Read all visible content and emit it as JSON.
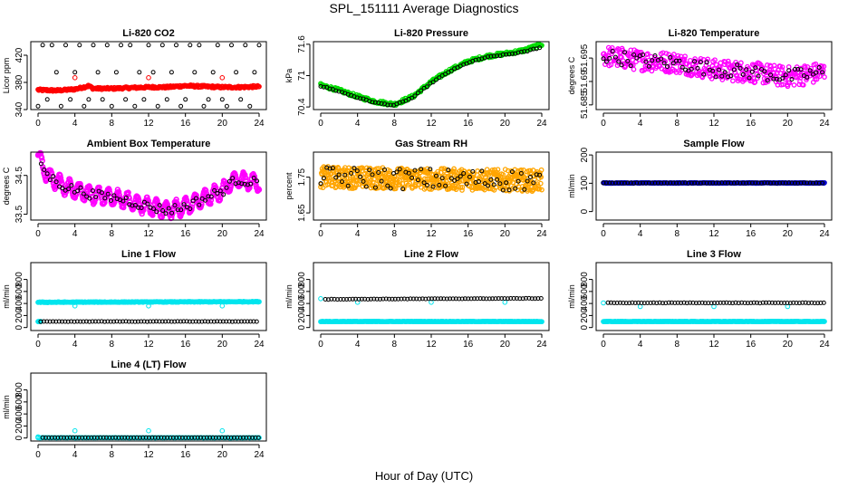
{
  "figure": {
    "title": "SPL_151111  Average Diagnostics",
    "xlabel": "Hour of Day (UTC)",
    "colors": {
      "black": "#000000",
      "red": "#ff0000",
      "green": "#00dd00",
      "magenta": "#ff00ff",
      "orange": "#ffa500",
      "blue": "#0000cc",
      "cyan": "#00e5ee"
    }
  },
  "chart_data": [
    {
      "type": "scatter",
      "title": "Li-820 CO2",
      "ylabel": "Licor ppm",
      "xlim": [
        0,
        24
      ],
      "ylim": [
        340,
        440
      ],
      "xticks": [
        0,
        4,
        8,
        12,
        16,
        20,
        24
      ],
      "yticks": [
        340,
        380,
        420
      ],
      "series": [
        {
          "color": "#000000",
          "kind": "discrete",
          "x_start": 0,
          "x_step": 0.5,
          "levels": [
            345,
            355,
            395,
            435
          ],
          "pattern": [
            0,
            3,
            1,
            3,
            2,
            0,
            3,
            1,
            2,
            3,
            0,
            1,
            3,
            2,
            1,
            3,
            0,
            2,
            3,
            1,
            3,
            0,
            2,
            1,
            3,
            2,
            0,
            3,
            1,
            2,
            3,
            0,
            1,
            3,
            2,
            3,
            0,
            1,
            2,
            3,
            1,
            0,
            3,
            2,
            1,
            3,
            0,
            2,
            3
          ]
        },
        {
          "color": "#ff0000",
          "kind": "dense",
          "x": [
            0,
            2,
            3,
            4,
            5,
            5.5,
            6,
            8,
            10,
            12,
            14,
            16,
            18,
            20,
            22,
            24
          ],
          "y": [
            369,
            368,
            369,
            370,
            373,
            375,
            371,
            371,
            372,
            373,
            373,
            375,
            374,
            373,
            373,
            374
          ],
          "jitter": 1.5,
          "n": 300
        },
        {
          "color": "#ff0000",
          "kind": "points",
          "x": [
            4,
            12,
            20
          ],
          "y": [
            387,
            387,
            387
          ]
        }
      ]
    },
    {
      "type": "scatter",
      "title": "Li-820 Pressure",
      "ylabel": "kPa",
      "xlim": [
        0,
        24
      ],
      "ylim": [
        70.35,
        71.65
      ],
      "xticks": [
        0,
        4,
        8,
        12,
        16,
        20,
        24
      ],
      "yticks": [
        70.4,
        71.0,
        71.6
      ],
      "series": [
        {
          "color": "#00dd00",
          "kind": "dense",
          "x": [
            0,
            2,
            4,
            6,
            8,
            10,
            12,
            14,
            16,
            18,
            20,
            22,
            24
          ],
          "y": [
            70.82,
            70.72,
            70.6,
            70.5,
            70.45,
            70.6,
            70.88,
            71.1,
            71.27,
            71.37,
            71.42,
            71.48,
            71.6
          ],
          "jitter": 0.03,
          "n": 260
        },
        {
          "color": "#000000",
          "kind": "curve",
          "x": [
            0,
            2,
            4,
            6,
            8,
            10,
            12,
            14,
            16,
            18,
            20,
            22,
            24
          ],
          "y": [
            70.8,
            70.7,
            70.58,
            70.48,
            70.43,
            70.58,
            70.86,
            71.08,
            71.25,
            71.35,
            71.4,
            71.45,
            71.55
          ],
          "step": 0.33,
          "jitter": 0.01
        }
      ]
    },
    {
      "type": "scatter",
      "title": "Li-820 Temperature",
      "ylabel": "degrees C",
      "xlim": [
        0,
        24
      ],
      "ylim": [
        51.684,
        51.6985
      ],
      "xticks": [
        0,
        4,
        8,
        12,
        16,
        20,
        24
      ],
      "yticks": [
        51.685,
        51.69,
        51.695
      ],
      "series": [
        {
          "color": "#ff00ff",
          "kind": "dense",
          "x": [
            0,
            4,
            8,
            12,
            16,
            20,
            24
          ],
          "y": [
            51.6955,
            51.6945,
            51.694,
            51.6925,
            51.692,
            51.691,
            51.692
          ],
          "jitter": 0.0022,
          "n": 380
        },
        {
          "color": "#000000",
          "kind": "curve",
          "x": [
            0,
            4,
            8,
            12,
            16,
            20,
            24
          ],
          "y": [
            51.6955,
            51.6945,
            51.694,
            51.6925,
            51.692,
            51.691,
            51.692
          ],
          "step": 0.33,
          "jitter": 0.0015
        }
      ]
    },
    {
      "type": "scatter",
      "title": "Ambient Box Temperature",
      "ylabel": "degrees C",
      "xlim": [
        0,
        24
      ],
      "ylim": [
        33.35,
        35.1
      ],
      "xticks": [
        0,
        4,
        8,
        12,
        16,
        20,
        24
      ],
      "yticks": [
        33.5,
        34.5
      ],
      "series": [
        {
          "color": "#ff00ff",
          "kind": "wave",
          "x": [
            0,
            1,
            3,
            6,
            9,
            12,
            14,
            16,
            18,
            20,
            21.5,
            24
          ],
          "y": [
            35.0,
            34.5,
            34.2,
            34.0,
            33.9,
            33.7,
            33.6,
            33.7,
            33.9,
            34.1,
            34.4,
            34.3
          ],
          "amp": 0.2,
          "period": 1.05,
          "n": 420
        },
        {
          "color": "#000000",
          "kind": "curve",
          "x": [
            0,
            1,
            3,
            6,
            9,
            12,
            14,
            16,
            18,
            20,
            21.5,
            24
          ],
          "y": [
            35.0,
            34.5,
            34.2,
            34.0,
            33.9,
            33.7,
            33.6,
            33.7,
            33.9,
            34.1,
            34.4,
            34.3
          ],
          "step": 0.33,
          "jitter": 0.12
        }
      ]
    },
    {
      "type": "scatter",
      "title": "Gas Stream RH",
      "ylabel": "percent",
      "xlim": [
        0,
        24
      ],
      "ylim": [
        1.63,
        1.82
      ],
      "xticks": [
        0,
        4,
        8,
        12,
        16,
        20,
        24
      ],
      "yticks": [
        1.65,
        1.75
      ],
      "series": [
        {
          "color": "#ffa500",
          "kind": "dense",
          "x": [
            0,
            24
          ],
          "y": [
            1.75,
            1.74
          ],
          "jitter": 0.03,
          "n": 600
        },
        {
          "color": "#000000",
          "kind": "curve",
          "x": [
            0,
            24
          ],
          "y": [
            1.75,
            1.74
          ],
          "step": 0.33,
          "jitter": 0.03
        }
      ]
    },
    {
      "type": "scatter",
      "title": "Sample Flow",
      "ylabel": "ml/min",
      "xlim": [
        0,
        24
      ],
      "ylim": [
        -30,
        210
      ],
      "xticks": [
        0,
        4,
        8,
        12,
        16,
        20,
        24
      ],
      "yticks": [
        0,
        100,
        200
      ],
      "series": [
        {
          "color": "#0000cc",
          "kind": "dense",
          "x": [
            0,
            24
          ],
          "y": [
            101,
            101
          ],
          "jitter": 1,
          "n": 260
        },
        {
          "color": "#000000",
          "kind": "curve",
          "x": [
            0,
            24
          ],
          "y": [
            101,
            101
          ],
          "step": 0.33,
          "jitter": 0.5
        }
      ]
    },
    {
      "type": "scatter",
      "title": "Line 1 Flow",
      "ylabel": "ml/min",
      "xlim": [
        0,
        24
      ],
      "ylim": [
        -50,
        1080
      ],
      "xticks": [
        0,
        4,
        8,
        12,
        16,
        20,
        24
      ],
      "yticks": [
        0,
        200,
        400,
        600,
        800
      ],
      "series": [
        {
          "color": "#00e5ee",
          "kind": "dense",
          "x": [
            0,
            24
          ],
          "y": [
            420,
            430
          ],
          "jitter": 5,
          "n": 260
        },
        {
          "color": "#00e5ee",
          "kind": "points",
          "x": [
            4,
            12,
            20
          ],
          "y": [
            360,
            360,
            360
          ]
        },
        {
          "color": "#00e5ee",
          "kind": "dense",
          "x": [
            0,
            0.3
          ],
          "y": [
            100,
            100
          ],
          "jitter": 2,
          "n": 6
        },
        {
          "color": "#000000",
          "kind": "curve",
          "x": [
            0.3,
            24
          ],
          "y": [
            100,
            100
          ],
          "step": 0.33,
          "jitter": 2
        }
      ]
    },
    {
      "type": "scatter",
      "title": "Line 2 Flow",
      "ylabel": "ml/min",
      "xlim": [
        0,
        24
      ],
      "ylim": [
        -50,
        1080
      ],
      "xticks": [
        0,
        4,
        8,
        12,
        16,
        20,
        24
      ],
      "yticks": [
        0,
        200,
        400,
        600,
        800
      ],
      "series": [
        {
          "color": "#00e5ee",
          "kind": "dense",
          "x": [
            0,
            24
          ],
          "y": [
            100,
            100
          ],
          "jitter": 3,
          "n": 260
        },
        {
          "color": "#00e5ee",
          "kind": "points",
          "x": [
            0,
            4,
            12,
            20
          ],
          "y": [
            480,
            420,
            420,
            420
          ]
        },
        {
          "color": "#000000",
          "kind": "curve",
          "x": [
            0.5,
            24
          ],
          "y": [
            470,
            485
          ],
          "step": 0.33,
          "jitter": 3
        }
      ]
    },
    {
      "type": "scatter",
      "title": "Line 3 Flow",
      "ylabel": "ml/min",
      "xlim": [
        0,
        24
      ],
      "ylim": [
        -50,
        1080
      ],
      "xticks": [
        0,
        4,
        8,
        12,
        16,
        20,
        24
      ],
      "yticks": [
        0,
        200,
        400,
        600,
        800
      ],
      "series": [
        {
          "color": "#00e5ee",
          "kind": "dense",
          "x": [
            0,
            24
          ],
          "y": [
            100,
            100
          ],
          "jitter": 3,
          "n": 260
        },
        {
          "color": "#00e5ee",
          "kind": "points",
          "x": [
            0,
            4,
            12,
            20
          ],
          "y": [
            410,
            350,
            350,
            350
          ]
        },
        {
          "color": "#000000",
          "kind": "curve",
          "x": [
            0.5,
            24
          ],
          "y": [
            410,
            410
          ],
          "step": 0.33,
          "jitter": 3
        }
      ]
    },
    {
      "type": "scatter",
      "title": "Line 4 (LT) Flow",
      "ylabel": "ml/min",
      "xlim": [
        0,
        24
      ],
      "ylim": [
        -50,
        1080
      ],
      "xticks": [
        0,
        4,
        8,
        12,
        16,
        20,
        24
      ],
      "yticks": [
        0,
        200,
        400,
        600,
        800
      ],
      "series": [
        {
          "color": "#00e5ee",
          "kind": "dense",
          "x": [
            0,
            24
          ],
          "y": [
            5,
            5
          ],
          "jitter": 2,
          "n": 120
        },
        {
          "color": "#00e5ee",
          "kind": "points",
          "x": [
            0,
            4,
            12,
            20
          ],
          "y": [
            20,
            120,
            120,
            120
          ]
        },
        {
          "color": "#000000",
          "kind": "curve",
          "x": [
            0.5,
            24
          ],
          "y": [
            5,
            5
          ],
          "step": 0.33,
          "jitter": 1
        }
      ]
    }
  ]
}
